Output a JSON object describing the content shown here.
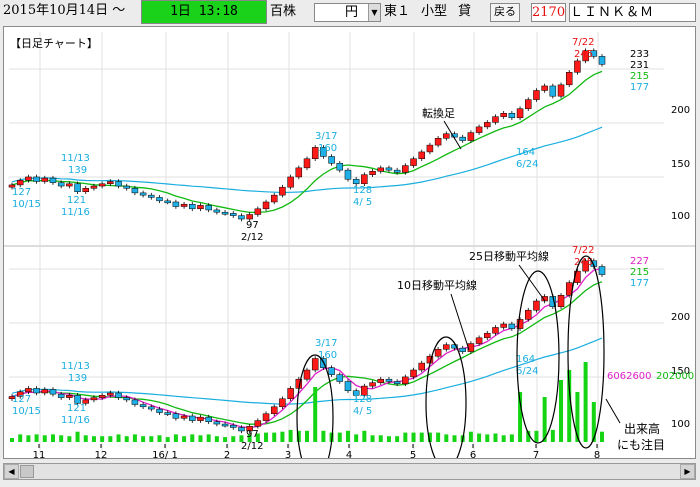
{
  "toolbar": {
    "date": "2015年10月14日 ～",
    "period": "1日 13:18",
    "unit_label": "百株",
    "currency_value": "円",
    "market_label": "東１",
    "lot_label": "小型",
    "lending_label": "貸",
    "back_button": "戻る",
    "code": "2170",
    "name": "ＬＩＮＫ＆Ｍ"
  },
  "chart_title": "【日足チャート】",
  "x_ticks": [
    "11",
    "12",
    "16/ 1",
    "2",
    "3",
    "4",
    "5",
    "6",
    "7",
    "8"
  ],
  "upper_labels": {
    "left_scale": [
      "127",
      "10/15"
    ],
    "ann_1113": [
      "11/13",
      "139"
    ],
    "ann_1116": [
      "121",
      "11/16"
    ],
    "ann_212": [
      "97",
      "2/12"
    ],
    "ann_317": [
      "3/17",
      "160"
    ],
    "ann_45": [
      "128",
      "4/ 5"
    ],
    "ann_624": [
      "164",
      "6/24"
    ],
    "ann_722": [
      "7/22",
      "245"
    ],
    "right_values": [
      "233",
      "231",
      "215",
      "177"
    ],
    "scale": [
      "200",
      "150",
      "100"
    ],
    "callout": "転換足"
  },
  "lower_labels": {
    "left_scale": [
      "127",
      "10/15"
    ],
    "ann_1113": [
      "11/13",
      "139"
    ],
    "ann_1116": [
      "121",
      "11/16"
    ],
    "ann_212": [
      "97",
      "2/12"
    ],
    "ann_317": [
      "3/17",
      "160"
    ],
    "ann_45": [
      "128",
      "4/ 5"
    ],
    "ann_624": [
      "164",
      "6/24"
    ],
    "ann_722": [
      "7/22",
      "245"
    ],
    "right_values": [
      "227",
      "215",
      "177"
    ],
    "scale": [
      "200",
      "150",
      "100"
    ],
    "volume_left": "6062600",
    "volume_right": "202000",
    "callout_25": "25日移動平均線",
    "callout_10": "10日移動平均線",
    "callout_volume": [
      "出来高",
      "にも注目"
    ]
  },
  "colors": {
    "up": "#ff1a1a",
    "down": "#1eb0e6",
    "ma_short": "#11b911",
    "ma_long": "#19aedf",
    "ma10": "#e020c8",
    "volume": "#14d414",
    "titlebar": "#19d219"
  },
  "chart_data": {
    "type": "candlestick",
    "x_range": [
      "2015-10-15",
      "2016-08-05"
    ],
    "y_range": [
      90,
      250
    ],
    "annotated_points": [
      {
        "date": "2015-10-15",
        "value": 127
      },
      {
        "date": "2015-11-13",
        "value": 139
      },
      {
        "date": "2015-11-16",
        "value": 121
      },
      {
        "date": "2016-02-12",
        "value": 97
      },
      {
        "date": "2016-03-17",
        "value": 160
      },
      {
        "date": "2016-04-05",
        "value": 128
      },
      {
        "date": "2016-06-24",
        "value": 164
      },
      {
        "date": "2016-07-22",
        "value": 245
      }
    ],
    "series_close": [
      127,
      131,
      134,
      130,
      133,
      129,
      126,
      128,
      121,
      124,
      126,
      128,
      130,
      126,
      124,
      120,
      118,
      116,
      113,
      112,
      108,
      110,
      106,
      109,
      105,
      103,
      102,
      100,
      97,
      101,
      106,
      112,
      118,
      125,
      134,
      142,
      150,
      160,
      152,
      146,
      140,
      132,
      128,
      136,
      139,
      142,
      140,
      138,
      144,
      150,
      156,
      162,
      168,
      172,
      169,
      166,
      173,
      178,
      182,
      187,
      190,
      186,
      194,
      202,
      210,
      214,
      205,
      215,
      226,
      236,
      245,
      240,
      233
    ],
    "volume_left_value": 6062600,
    "volume_right_value": 202000
  }
}
